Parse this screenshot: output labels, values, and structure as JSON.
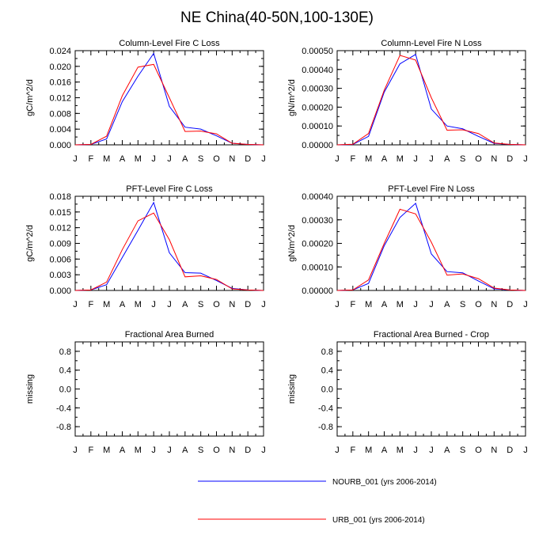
{
  "figure_title": "NE China(40-50N,100-130E)",
  "months": [
    "J",
    "F",
    "M",
    "A",
    "M",
    "J",
    "J",
    "A",
    "S",
    "O",
    "N",
    "D",
    "J"
  ],
  "legend": [
    {
      "label": "NOURB_001 (yrs 2006-2014)",
      "color": "#0000ff"
    },
    {
      "label": "URB_001 (yrs 2006-2014)",
      "color": "#ff0000"
    }
  ],
  "chart_data": [
    {
      "type": "line",
      "title": "Column-Level Fire C Loss",
      "ylabel": "gC/m^2/d",
      "ylim": [
        0,
        0.024
      ],
      "ytick_labels": [
        "0.000",
        "0.004",
        "0.008",
        "0.012",
        "0.016",
        "0.020",
        "0.024"
      ],
      "x": [
        0,
        1,
        2,
        3,
        4,
        5,
        6,
        7,
        8,
        9,
        10,
        11,
        12
      ],
      "series": [
        {
          "name": "NOURB_001 (yrs 2006-2014)",
          "color": "#0000ff",
          "values": [
            0,
            0.0001,
            0.0015,
            0.011,
            0.0175,
            0.0233,
            0.0098,
            0.0045,
            0.004,
            0.0023,
            0.0004,
            0.0001,
            0.0
          ]
        },
        {
          "name": "URB_001 (yrs 2006-2014)",
          "color": "#ff0000",
          "values": [
            0,
            0.0001,
            0.0022,
            0.0125,
            0.0198,
            0.0205,
            0.012,
            0.0034,
            0.0035,
            0.0028,
            0.0004,
            0.0001,
            0.0
          ]
        }
      ]
    },
    {
      "type": "line",
      "title": "Column-Level Fire N Loss",
      "ylabel": "gN/m^2/d",
      "ylim": [
        0,
        0.0005
      ],
      "ytick_labels": [
        "0.00000",
        "0.00010",
        "0.00020",
        "0.00030",
        "0.00040",
        "0.00050"
      ],
      "x": [
        0,
        1,
        2,
        3,
        4,
        5,
        6,
        7,
        8,
        9,
        10,
        11,
        12
      ],
      "series": [
        {
          "name": "NOURB_001 (yrs 2006-2014)",
          "color": "#0000ff",
          "values": [
            0,
            2e-06,
            4.5e-05,
            0.00028,
            0.00043,
            0.00048,
            0.00019,
            0.0001,
            8.5e-05,
            4.5e-05,
            8e-06,
            2e-06,
            0.0
          ]
        },
        {
          "name": "URB_001 (yrs 2006-2014)",
          "color": "#ff0000",
          "values": [
            0,
            3e-06,
            6e-05,
            0.00029,
            0.000475,
            0.00045,
            0.00025,
            7.8e-05,
            8e-05,
            6e-05,
            1e-05,
            2e-06,
            0.0
          ]
        }
      ]
    },
    {
      "type": "line",
      "title": "PFT-Level Fire C Loss",
      "ylabel": "gC/m^2/d",
      "ylim": [
        0,
        0.018
      ],
      "ytick_labels": [
        "0.000",
        "0.003",
        "0.006",
        "0.009",
        "0.012",
        "0.015",
        "0.018"
      ],
      "x": [
        0,
        1,
        2,
        3,
        4,
        5,
        6,
        7,
        8,
        9,
        10,
        11,
        12
      ],
      "series": [
        {
          "name": "NOURB_001 (yrs 2006-2014)",
          "color": "#0000ff",
          "values": [
            0,
            0.0001,
            0.0011,
            0.0063,
            0.0115,
            0.0168,
            0.0072,
            0.0034,
            0.0033,
            0.0019,
            0.0004,
            0.0001,
            0.0
          ]
        },
        {
          "name": "URB_001 (yrs 2006-2014)",
          "color": "#ff0000",
          "values": [
            0,
            0.0001,
            0.0016,
            0.0078,
            0.0133,
            0.0148,
            0.0097,
            0.0026,
            0.0028,
            0.0021,
            0.0003,
            0.0001,
            0.0
          ]
        }
      ]
    },
    {
      "type": "line",
      "title": "PFT-Level Fire N Loss",
      "ylabel": "gN/m^2/d",
      "ylim": [
        0,
        0.0004
      ],
      "ytick_labels": [
        "0.00000",
        "0.00010",
        "0.00020",
        "0.00030",
        "0.00040"
      ],
      "x": [
        0,
        1,
        2,
        3,
        4,
        5,
        6,
        7,
        8,
        9,
        10,
        11,
        12
      ],
      "series": [
        {
          "name": "NOURB_001 (yrs 2006-2014)",
          "color": "#0000ff",
          "values": [
            0,
            2e-06,
            3e-05,
            0.00019,
            0.00031,
            0.00037,
            0.000155,
            8e-05,
            7.5e-05,
            4e-05,
            7e-06,
            2e-06,
            0.0
          ]
        },
        {
          "name": "URB_001 (yrs 2006-2014)",
          "color": "#ff0000",
          "values": [
            0,
            2e-06,
            4.5e-05,
            0.0002,
            0.000345,
            0.000325,
            0.000205,
            6.5e-05,
            7e-05,
            5e-05,
            1e-05,
            2e-06,
            0.0
          ]
        }
      ]
    },
    {
      "type": "line",
      "title": "Fractional Area Burned",
      "ylabel": "missing",
      "ylim": [
        -1,
        1
      ],
      "ytick_labels": [
        "-0.8",
        "-0.4",
        "0.0",
        "0.4",
        "0.8"
      ],
      "ytick_values": [
        -0.8,
        -0.4,
        0.0,
        0.4,
        0.8
      ],
      "x": [
        0,
        1,
        2,
        3,
        4,
        5,
        6,
        7,
        8,
        9,
        10,
        11,
        12
      ],
      "series": []
    },
    {
      "type": "line",
      "title": "Fractional Area Burned - Crop",
      "ylabel": "missing",
      "ylim": [
        -1,
        1
      ],
      "ytick_labels": [
        "-0.8",
        "-0.4",
        "0.0",
        "0.4",
        "0.8"
      ],
      "ytick_values": [
        -0.8,
        -0.4,
        0.0,
        0.4,
        0.8
      ],
      "x": [
        0,
        1,
        2,
        3,
        4,
        5,
        6,
        7,
        8,
        9,
        10,
        11,
        12
      ],
      "series": []
    }
  ]
}
